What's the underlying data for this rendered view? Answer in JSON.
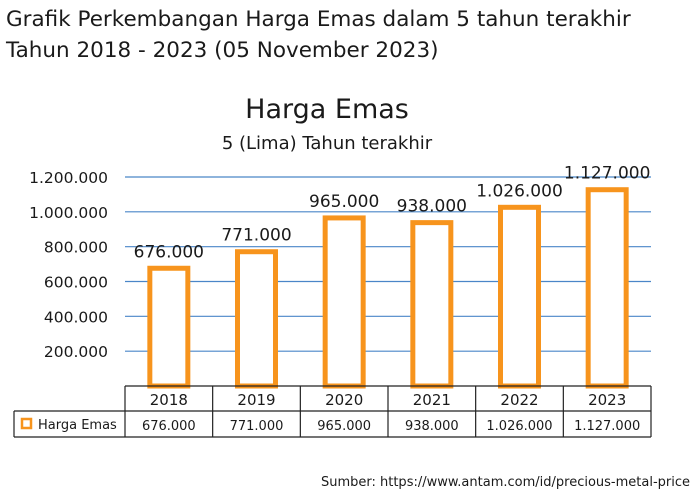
{
  "header": {
    "line1": "Grafik Perkembangan Harga Emas dalam 5 tahun terakhir",
    "line2": "Tahun 2018 - 2023 (05 November 2023)"
  },
  "source": "Sumber: https://www.antam.com/id/precious-metal-price",
  "colors": {
    "bar_stroke": "#f7941d",
    "bar_fill": "#ffffff",
    "grid": "#4a86c8",
    "table_border": "#222222"
  },
  "chart_data": {
    "type": "bar",
    "title": "Harga Emas",
    "subtitle": "5 (Lima) Tahun terakhir",
    "categories": [
      "2018",
      "2019",
      "2020",
      "2021",
      "2022",
      "2023"
    ],
    "series": [
      {
        "name": "Harga Emas",
        "values": [
          676000,
          771000,
          965000,
          938000,
          1026000,
          1127000
        ],
        "labels": [
          "676.000",
          "771.000",
          "965.000",
          "938.000",
          "1.026.000",
          "1.127.000"
        ]
      }
    ],
    "y_ticks": [
      200000,
      400000,
      600000,
      800000,
      1000000,
      1200000
    ],
    "y_tick_labels": [
      "200.000",
      "400.000",
      "600.000",
      "800.000",
      "1.000.000",
      "1.200.000"
    ],
    "ylim": [
      0,
      1200000
    ],
    "grid": true,
    "legend": "data-table"
  }
}
